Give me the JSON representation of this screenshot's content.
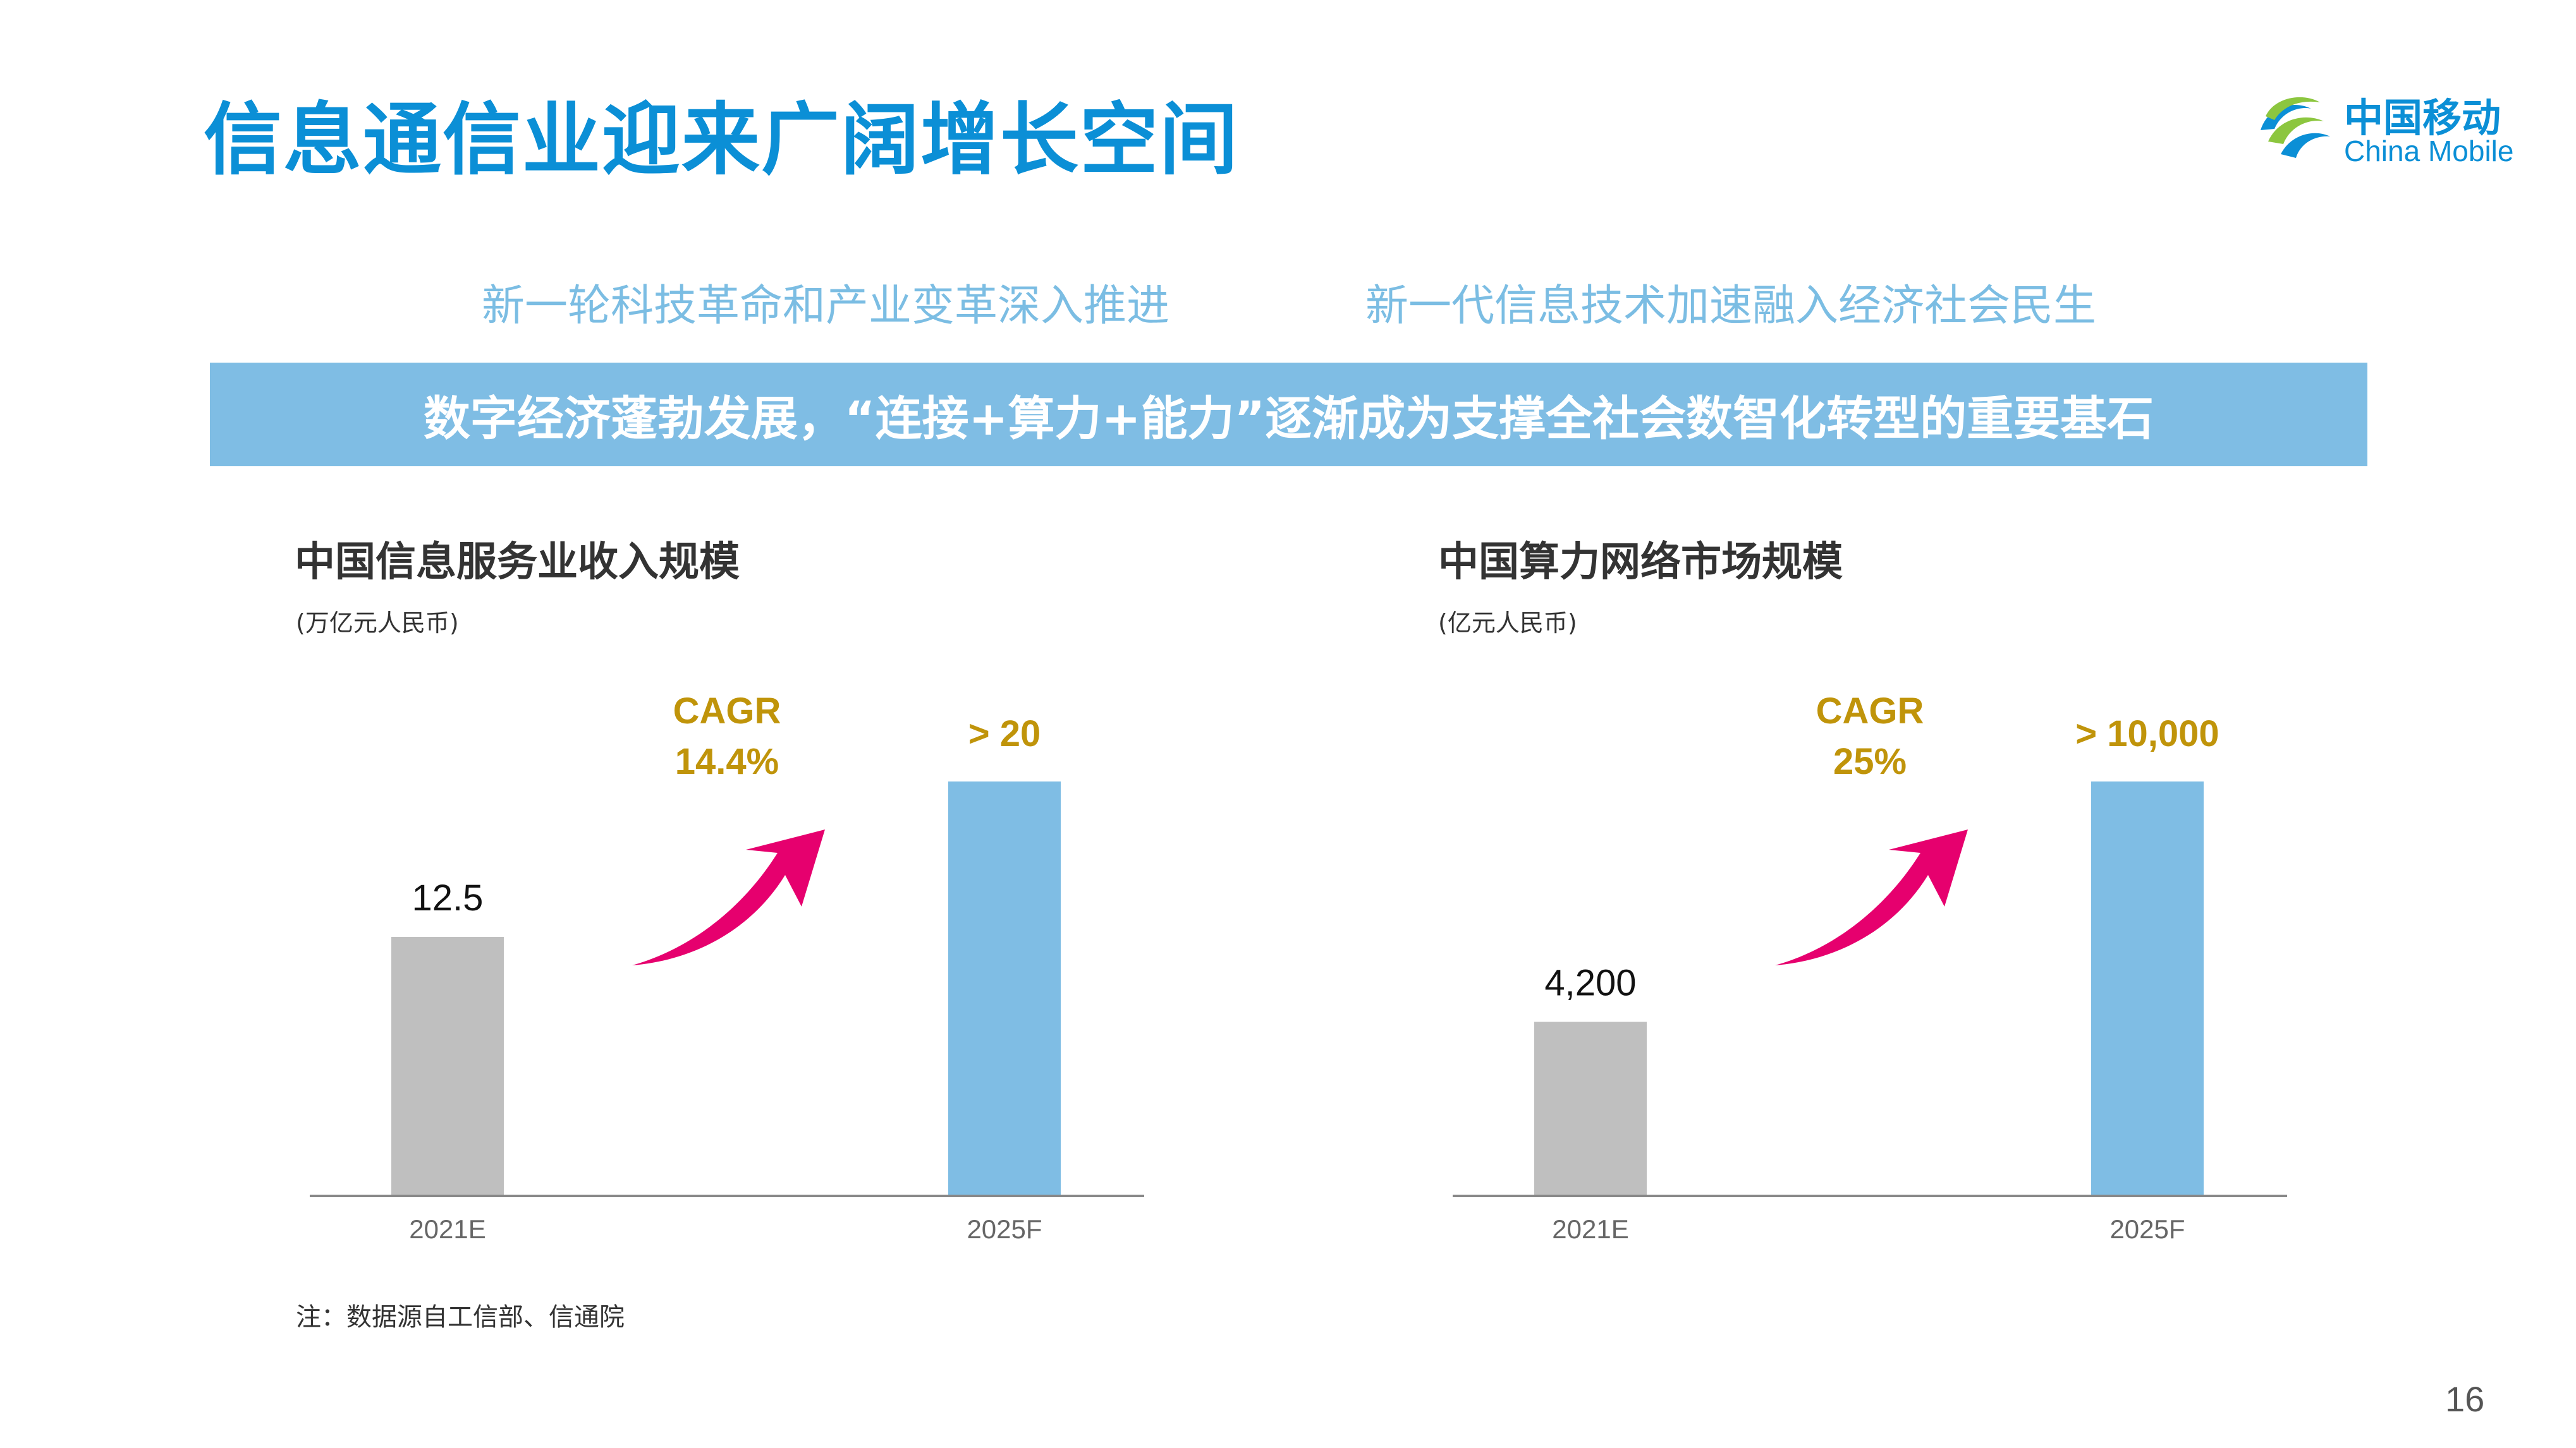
{
  "page": {
    "title": "信息通信业迎来广阔增长空间",
    "subtitle_left": "新一轮科技革命和产业变革深入推进",
    "subtitle_right": "新一代信息技术加速融入经济社会民生",
    "banner": "数字经济蓬勃发展，“连接+算力+能力”逐渐成为支撑全社会数智化转型的重要基石",
    "note": "注：数据源自工信部、信通院",
    "page_number": "16"
  },
  "logo": {
    "name_cn": "中国移动",
    "name_en": "China Mobile",
    "icon": "china-mobile-logo-icon"
  },
  "colors": {
    "title": "#0b8fd6",
    "banner": "#7fbde4",
    "bar_2021": "#bfbfbf",
    "bar_2025": "#7fbde4",
    "cagr": "#c0940a",
    "arrow": "#e6006e"
  },
  "chart_data": [
    {
      "type": "bar",
      "title": "中国信息服务业收入规模",
      "unit": "(万亿元人民币)",
      "categories": [
        "2021E",
        "2025F"
      ],
      "values": [
        12.5,
        20
      ],
      "data_labels": [
        "12.5",
        "> 20"
      ],
      "cagr_label": "CAGR",
      "cagr_value": "14.4%"
    },
    {
      "type": "bar",
      "title": "中国算力网络市场规模",
      "unit": "(亿元人民币)",
      "categories": [
        "2021E",
        "2025F"
      ],
      "values": [
        4200,
        10000
      ],
      "data_labels": [
        "4,200",
        "> 10,000"
      ],
      "cagr_label": "CAGR",
      "cagr_value": "25%"
    }
  ]
}
